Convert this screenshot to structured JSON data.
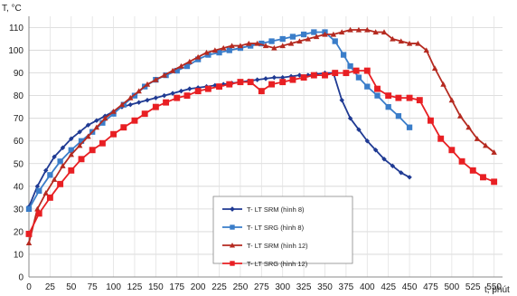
{
  "chart_data": {
    "type": "line",
    "ylabel": "T, °C",
    "xlabel": "t, phút",
    "xlim": [
      0,
      560
    ],
    "ylim": [
      0,
      115
    ],
    "x_ticks": [
      0,
      25,
      50,
      75,
      100,
      125,
      150,
      175,
      200,
      225,
      250,
      275,
      300,
      325,
      350,
      375,
      400,
      425,
      450,
      475,
      500,
      525,
      550
    ],
    "y_ticks": [
      0,
      10,
      20,
      30,
      40,
      50,
      60,
      70,
      80,
      90,
      100,
      110
    ],
    "grid": true,
    "legend_position": "bottom-center",
    "series": [
      {
        "name": "T- LT SRM (hình 8)",
        "color": "#1f3a93",
        "marker": "diamond",
        "x": [
          0,
          10,
          20,
          30,
          40,
          50,
          60,
          70,
          80,
          90,
          100,
          110,
          120,
          130,
          140,
          150,
          160,
          170,
          180,
          190,
          200,
          210,
          220,
          230,
          240,
          250,
          260,
          270,
          280,
          290,
          300,
          310,
          320,
          330,
          340,
          350,
          360,
          370,
          380,
          390,
          400,
          410,
          420,
          430,
          440,
          450
        ],
        "y": [
          31,
          40,
          47,
          53,
          57,
          61,
          64,
          67,
          69,
          71,
          73,
          75,
          76,
          77,
          78,
          79,
          80,
          81,
          82,
          83,
          83.5,
          84,
          84.5,
          85,
          85.5,
          86,
          86.5,
          87,
          87.5,
          88,
          88,
          88.5,
          89,
          89,
          89.5,
          90,
          90,
          78,
          70,
          65,
          60,
          56,
          52,
          49,
          46,
          44
        ]
      },
      {
        "name": "T- LT SRG (hình 8)",
        "color": "#3a7dc9",
        "marker": "square",
        "x": [
          0,
          12,
          25,
          37,
          50,
          62,
          75,
          87,
          100,
          112,
          125,
          137,
          150,
          162,
          175,
          187,
          200,
          212,
          225,
          237,
          250,
          262,
          275,
          287,
          300,
          312,
          325,
          337,
          350,
          362,
          372,
          380,
          390,
          400,
          412,
          425,
          437,
          450
        ],
        "y": [
          30,
          38,
          45,
          51,
          56,
          60,
          64,
          68,
          72,
          76,
          80,
          84,
          87,
          89,
          91,
          93,
          96,
          98,
          99,
          100,
          101,
          102,
          103,
          104,
          105,
          106,
          107,
          108,
          108,
          104,
          98,
          93,
          88,
          84,
          80,
          75,
          71,
          66
        ]
      },
      {
        "name": "T- LT SRM (hình 12)",
        "color": "#b52a20",
        "marker": "triangle",
        "x": [
          0,
          10,
          20,
          30,
          40,
          50,
          60,
          70,
          80,
          90,
          100,
          110,
          120,
          130,
          140,
          150,
          160,
          170,
          180,
          190,
          200,
          210,
          220,
          230,
          240,
          250,
          260,
          270,
          280,
          290,
          300,
          310,
          320,
          330,
          340,
          350,
          360,
          370,
          380,
          390,
          400,
          410,
          420,
          430,
          440,
          450,
          460,
          470,
          480,
          490,
          500,
          510,
          520,
          530,
          540,
          550
        ],
        "y": [
          15,
          30,
          37,
          43,
          49,
          54,
          58,
          62,
          66,
          70,
          73,
          76,
          79,
          82,
          85,
          87,
          89,
          91,
          93,
          95,
          97,
          99,
          100,
          101,
          102,
          102,
          103,
          103,
          102,
          101,
          102,
          103,
          104,
          105,
          106,
          107,
          107,
          108,
          109,
          109,
          109,
          108,
          108,
          105,
          104,
          103,
          103,
          100,
          92,
          85,
          78,
          71,
          66,
          61,
          58,
          55
        ]
      },
      {
        "name": "T- LT SRG (hình 12)",
        "color": "#e81f23",
        "marker": "square",
        "x": [
          0,
          12,
          25,
          37,
          50,
          62,
          75,
          87,
          100,
          112,
          125,
          137,
          150,
          162,
          175,
          187,
          200,
          212,
          225,
          237,
          250,
          262,
          275,
          287,
          300,
          312,
          325,
          337,
          350,
          362,
          375,
          387,
          400,
          412,
          425,
          437,
          450,
          462,
          475,
          487,
          500,
          512,
          525,
          537,
          550
        ],
        "y": [
          19,
          28,
          35,
          41,
          47,
          52,
          56,
          59,
          63,
          66,
          69,
          72,
          75,
          77,
          79,
          80,
          82,
          83,
          84,
          85,
          86,
          86,
          82,
          85,
          86,
          87,
          88,
          89,
          89,
          90,
          90,
          91,
          91,
          83,
          80,
          79,
          79,
          78,
          69,
          61,
          56,
          51,
          47,
          44,
          42
        ]
      }
    ]
  }
}
